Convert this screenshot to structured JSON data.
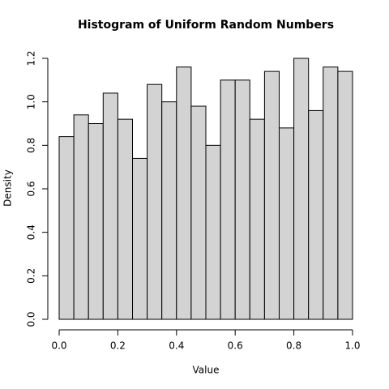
{
  "chart_data": {
    "type": "histogram",
    "title": "Histogram of Uniform Random Numbers",
    "x_label": "Value",
    "y_label": "Density",
    "bins": [
      0,
      0.05,
      0.1,
      0.15,
      0.2,
      0.25,
      0.3,
      0.35,
      0.4,
      0.45,
      0.5,
      0.55,
      0.6,
      0.65,
      0.7,
      0.75,
      0.8,
      0.85,
      0.9,
      0.95,
      1
    ],
    "values": [
      0.84,
      0.94,
      0.9,
      1.04,
      0.92,
      0.74,
      1.08,
      1.0,
      1.16,
      0.98,
      0.8,
      1.1,
      1.1,
      0.92,
      1.14,
      0.88,
      1.2,
      0.96,
      1.16,
      1.14
    ],
    "color": "#d3d3d3",
    "edge_color": "#000000",
    "xlim": [
      0,
      1
    ],
    "ylim": [
      0,
      1.2
    ],
    "xticks": [
      {
        "value": 0,
        "label": "0.0"
      },
      0.2,
      0.4,
      0.6,
      0.8,
      {
        "value": 1,
        "label": "1.0"
      }
    ],
    "yticks": [
      {
        "value": 0,
        "label": "0.0"
      },
      0.2,
      0.4,
      0.6,
      0.8,
      {
        "value": 1,
        "label": "1.0"
      },
      1.2
    ]
  }
}
